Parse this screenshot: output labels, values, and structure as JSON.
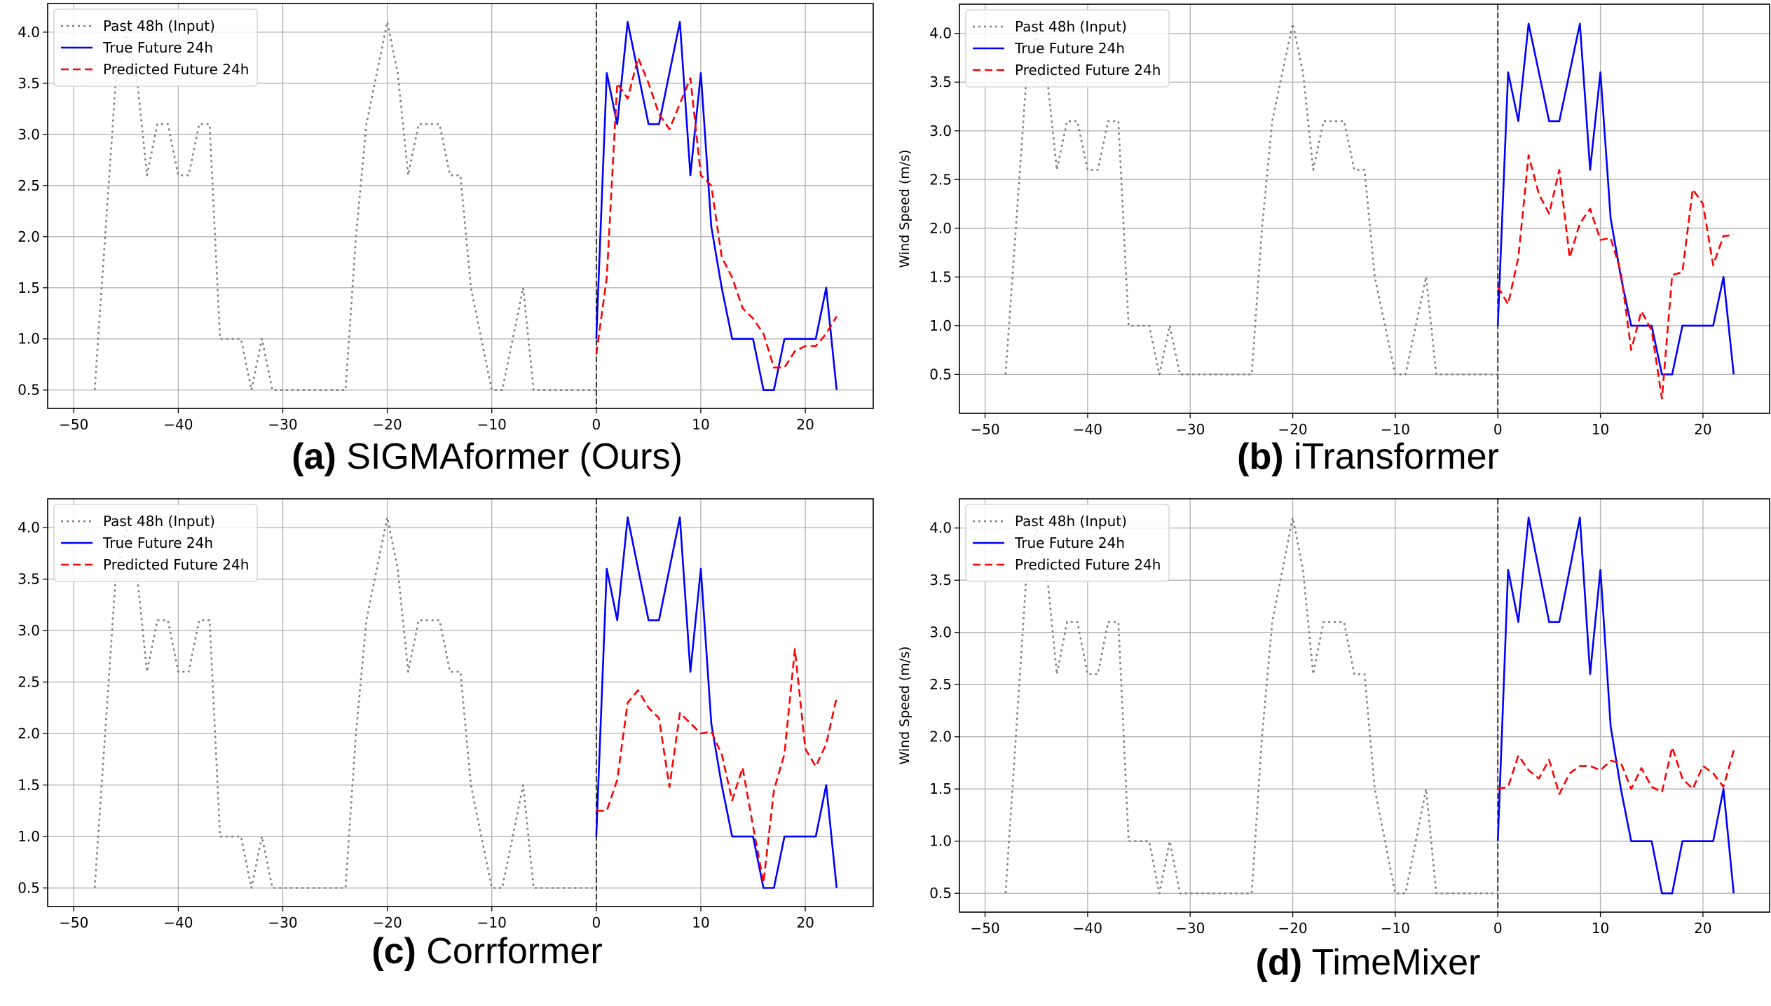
{
  "chart_data": [
    {
      "type": "line",
      "caption_letter": "(a)",
      "caption_name": "SIGMAformer (Ours)",
      "ylabel": "Wind Speed (m/s)",
      "xticks": [
        -50,
        -40,
        -30,
        -20,
        -10,
        0,
        10,
        20
      ],
      "yticks": [
        0.5,
        1.0,
        1.5,
        2.0,
        2.5,
        3.0,
        3.5,
        4.0
      ],
      "xlim": [
        -52.5,
        26.5
      ],
      "ylim": [
        0.32,
        4.28
      ],
      "grid": true,
      "legend": "top-left",
      "vline_x": 0,
      "series": [
        {
          "name": "Past 48h (Input)",
          "color": "#808080",
          "style": "dotted",
          "x": [
            -48,
            -47,
            -46,
            -45,
            -44,
            -43,
            -42,
            -41,
            -40,
            -39,
            -38,
            -37,
            -36,
            -35,
            -34,
            -33,
            -32,
            -31,
            -30,
            -29,
            -28,
            -27,
            -26,
            -25,
            -24,
            -23,
            -22,
            -21,
            -20,
            -19,
            -18,
            -17,
            -16,
            -15,
            -14,
            -13,
            -12,
            -11,
            -10,
            -9,
            -8,
            -7,
            -6,
            -5,
            -4,
            -3,
            -2,
            -1,
            0
          ],
          "y": [
            0.5,
            2.0,
            3.5,
            4.0,
            3.6,
            2.6,
            3.1,
            3.1,
            2.6,
            2.6,
            3.1,
            3.1,
            1.0,
            1.0,
            1.0,
            0.5,
            1.0,
            0.5,
            0.5,
            0.5,
            0.5,
            0.5,
            0.5,
            0.5,
            0.5,
            2.0,
            3.1,
            3.6,
            4.1,
            3.6,
            2.6,
            3.1,
            3.1,
            3.1,
            2.6,
            2.6,
            1.5,
            1.0,
            0.5,
            0.5,
            1.0,
            1.5,
            0.5,
            0.5,
            0.5,
            0.5,
            0.5,
            0.5,
            0.5
          ]
        },
        {
          "name": "True Future 24h",
          "color": "#0000ff",
          "style": "solid",
          "x": [
            0,
            1,
            2,
            3,
            4,
            5,
            6,
            7,
            8,
            9,
            10,
            11,
            12,
            13,
            14,
            15,
            16,
            17,
            18,
            19,
            20,
            21,
            22,
            23
          ],
          "y": [
            1.0,
            3.6,
            3.1,
            4.1,
            3.6,
            3.1,
            3.1,
            3.6,
            4.1,
            2.6,
            3.6,
            2.1,
            1.5,
            1.0,
            1.0,
            1.0,
            0.5,
            0.5,
            1.0,
            1.0,
            1.0,
            1.0,
            1.5,
            0.5
          ]
        },
        {
          "name": "Predicted Future 24h",
          "color": "#ff0000",
          "style": "dashed",
          "x": [
            0,
            1,
            2,
            3,
            4,
            5,
            6,
            7,
            8,
            9,
            10,
            11,
            12,
            13,
            14,
            15,
            16,
            17,
            18,
            19,
            20,
            21,
            22,
            23
          ],
          "y": [
            0.85,
            1.6,
            3.5,
            3.35,
            3.75,
            3.5,
            3.2,
            3.05,
            3.3,
            3.55,
            2.6,
            2.5,
            1.8,
            1.6,
            1.3,
            1.2,
            1.05,
            0.72,
            0.72,
            0.88,
            0.93,
            0.93,
            1.05,
            1.22
          ]
        }
      ]
    },
    {
      "type": "line",
      "caption_letter": "(b)",
      "caption_name": "iTransformer",
      "ylabel": "Wind Speed (m/s)",
      "xticks": [
        -50,
        -40,
        -30,
        -20,
        -10,
        0,
        10,
        20
      ],
      "yticks": [
        0.5,
        1.0,
        1.5,
        2.0,
        2.5,
        3.0,
        3.5,
        4.0
      ],
      "xlim": [
        -52.5,
        26.5
      ],
      "ylim": [
        0.1,
        4.3
      ],
      "grid": true,
      "legend": "top-left",
      "vline_x": 0,
      "series": [
        {
          "name": "Past 48h (Input)",
          "color": "#808080",
          "style": "dotted",
          "x": [
            -48,
            -47,
            -46,
            -45,
            -44,
            -43,
            -42,
            -41,
            -40,
            -39,
            -38,
            -37,
            -36,
            -35,
            -34,
            -33,
            -32,
            -31,
            -30,
            -29,
            -28,
            -27,
            -26,
            -25,
            -24,
            -23,
            -22,
            -21,
            -20,
            -19,
            -18,
            -17,
            -16,
            -15,
            -14,
            -13,
            -12,
            -11,
            -10,
            -9,
            -8,
            -7,
            -6,
            -5,
            -4,
            -3,
            -2,
            -1,
            0
          ],
          "y": [
            0.5,
            2.0,
            3.5,
            4.0,
            3.6,
            2.6,
            3.1,
            3.1,
            2.6,
            2.6,
            3.1,
            3.1,
            1.0,
            1.0,
            1.0,
            0.5,
            1.0,
            0.5,
            0.5,
            0.5,
            0.5,
            0.5,
            0.5,
            0.5,
            0.5,
            2.0,
            3.1,
            3.6,
            4.1,
            3.6,
            2.6,
            3.1,
            3.1,
            3.1,
            2.6,
            2.6,
            1.5,
            1.0,
            0.5,
            0.5,
            1.0,
            1.5,
            0.5,
            0.5,
            0.5,
            0.5,
            0.5,
            0.5,
            0.5
          ]
        },
        {
          "name": "True Future 24h",
          "color": "#0000ff",
          "style": "solid",
          "x": [
            0,
            1,
            2,
            3,
            4,
            5,
            6,
            7,
            8,
            9,
            10,
            11,
            12,
            13,
            14,
            15,
            16,
            17,
            18,
            19,
            20,
            21,
            22,
            23
          ],
          "y": [
            1.0,
            3.6,
            3.1,
            4.1,
            3.6,
            3.1,
            3.1,
            3.6,
            4.1,
            2.6,
            3.6,
            2.1,
            1.5,
            1.0,
            1.0,
            1.0,
            0.5,
            0.5,
            1.0,
            1.0,
            1.0,
            1.0,
            1.5,
            0.5
          ]
        },
        {
          "name": "Predicted Future 24h",
          "color": "#ff0000",
          "style": "dashed",
          "x": [
            0,
            1,
            2,
            3,
            4,
            5,
            6,
            7,
            8,
            9,
            10,
            11,
            12,
            13,
            14,
            15,
            16,
            17,
            18,
            19,
            20,
            21,
            22,
            23
          ],
          "y": [
            1.4,
            1.22,
            1.7,
            2.75,
            2.35,
            2.15,
            2.6,
            1.7,
            2.05,
            2.2,
            1.88,
            1.9,
            1.55,
            0.75,
            1.15,
            0.95,
            0.25,
            1.52,
            1.55,
            2.4,
            2.25,
            1.62,
            1.92,
            1.93
          ]
        }
      ]
    },
    {
      "type": "line",
      "caption_letter": "(c)",
      "caption_name": "Corrformer",
      "ylabel": "Wind Speed (m/s)",
      "xticks": [
        -50,
        -40,
        -30,
        -20,
        -10,
        0,
        10,
        20
      ],
      "yticks": [
        0.5,
        1.0,
        1.5,
        2.0,
        2.5,
        3.0,
        3.5,
        4.0
      ],
      "xlim": [
        -52.5,
        26.5
      ],
      "ylim": [
        0.32,
        4.28
      ],
      "grid": true,
      "legend": "top-left",
      "vline_x": 0,
      "series": [
        {
          "name": "Past 48h (Input)",
          "color": "#808080",
          "style": "dotted",
          "x": [
            -48,
            -47,
            -46,
            -45,
            -44,
            -43,
            -42,
            -41,
            -40,
            -39,
            -38,
            -37,
            -36,
            -35,
            -34,
            -33,
            -32,
            -31,
            -30,
            -29,
            -28,
            -27,
            -26,
            -25,
            -24,
            -23,
            -22,
            -21,
            -20,
            -19,
            -18,
            -17,
            -16,
            -15,
            -14,
            -13,
            -12,
            -11,
            -10,
            -9,
            -8,
            -7,
            -6,
            -5,
            -4,
            -3,
            -2,
            -1,
            0
          ],
          "y": [
            0.5,
            2.0,
            3.5,
            4.0,
            3.6,
            2.6,
            3.1,
            3.1,
            2.6,
            2.6,
            3.1,
            3.1,
            1.0,
            1.0,
            1.0,
            0.5,
            1.0,
            0.5,
            0.5,
            0.5,
            0.5,
            0.5,
            0.5,
            0.5,
            0.5,
            2.0,
            3.1,
            3.6,
            4.1,
            3.6,
            2.6,
            3.1,
            3.1,
            3.1,
            2.6,
            2.6,
            1.5,
            1.0,
            0.5,
            0.5,
            1.0,
            1.5,
            0.5,
            0.5,
            0.5,
            0.5,
            0.5,
            0.5,
            0.5
          ]
        },
        {
          "name": "True Future 24h",
          "color": "#0000ff",
          "style": "solid",
          "x": [
            0,
            1,
            2,
            3,
            4,
            5,
            6,
            7,
            8,
            9,
            10,
            11,
            12,
            13,
            14,
            15,
            16,
            17,
            18,
            19,
            20,
            21,
            22,
            23
          ],
          "y": [
            1.0,
            3.6,
            3.1,
            4.1,
            3.6,
            3.1,
            3.1,
            3.6,
            4.1,
            2.6,
            3.6,
            2.1,
            1.5,
            1.0,
            1.0,
            1.0,
            0.5,
            0.5,
            1.0,
            1.0,
            1.0,
            1.0,
            1.5,
            0.5
          ]
        },
        {
          "name": "Predicted Future 24h",
          "color": "#ff0000",
          "style": "dashed",
          "x": [
            0,
            1,
            2,
            3,
            4,
            5,
            6,
            7,
            8,
            9,
            10,
            11,
            12,
            13,
            14,
            15,
            16,
            17,
            18,
            19,
            20,
            21,
            22,
            23
          ],
          "y": [
            1.25,
            1.25,
            1.55,
            2.3,
            2.42,
            2.25,
            2.15,
            1.48,
            2.2,
            2.1,
            2.0,
            2.02,
            1.8,
            1.35,
            1.67,
            1.1,
            0.55,
            1.45,
            1.8,
            2.82,
            1.85,
            1.68,
            1.9,
            2.35
          ]
        }
      ]
    },
    {
      "type": "line",
      "caption_letter": "(d)",
      "caption_name": "TimeMixer",
      "ylabel": "Wind Speed (m/s)",
      "xticks": [
        -50,
        -40,
        -30,
        -20,
        -10,
        0,
        10,
        20
      ],
      "yticks": [
        0.5,
        1.0,
        1.5,
        2.0,
        2.5,
        3.0,
        3.5,
        4.0
      ],
      "xlim": [
        -52.5,
        26.5
      ],
      "ylim": [
        0.32,
        4.28
      ],
      "grid": true,
      "legend": "top-left",
      "vline_x": 0,
      "series": [
        {
          "name": "Past 48h (Input)",
          "color": "#808080",
          "style": "dotted",
          "x": [
            -48,
            -47,
            -46,
            -45,
            -44,
            -43,
            -42,
            -41,
            -40,
            -39,
            -38,
            -37,
            -36,
            -35,
            -34,
            -33,
            -32,
            -31,
            -30,
            -29,
            -28,
            -27,
            -26,
            -25,
            -24,
            -23,
            -22,
            -21,
            -20,
            -19,
            -18,
            -17,
            -16,
            -15,
            -14,
            -13,
            -12,
            -11,
            -10,
            -9,
            -8,
            -7,
            -6,
            -5,
            -4,
            -3,
            -2,
            -1,
            0
          ],
          "y": [
            0.5,
            2.0,
            3.5,
            4.0,
            3.6,
            2.6,
            3.1,
            3.1,
            2.6,
            2.6,
            3.1,
            3.1,
            1.0,
            1.0,
            1.0,
            0.5,
            1.0,
            0.5,
            0.5,
            0.5,
            0.5,
            0.5,
            0.5,
            0.5,
            0.5,
            2.0,
            3.1,
            3.6,
            4.1,
            3.6,
            2.6,
            3.1,
            3.1,
            3.1,
            2.6,
            2.6,
            1.5,
            1.0,
            0.5,
            0.5,
            1.0,
            1.5,
            0.5,
            0.5,
            0.5,
            0.5,
            0.5,
            0.5,
            0.5
          ]
        },
        {
          "name": "True Future 24h",
          "color": "#0000ff",
          "style": "solid",
          "x": [
            0,
            1,
            2,
            3,
            4,
            5,
            6,
            7,
            8,
            9,
            10,
            11,
            12,
            13,
            14,
            15,
            16,
            17,
            18,
            19,
            20,
            21,
            22,
            23
          ],
          "y": [
            1.0,
            3.6,
            3.1,
            4.1,
            3.6,
            3.1,
            3.1,
            3.6,
            4.1,
            2.6,
            3.6,
            2.1,
            1.5,
            1.0,
            1.0,
            1.0,
            0.5,
            0.5,
            1.0,
            1.0,
            1.0,
            1.0,
            1.5,
            0.5
          ]
        },
        {
          "name": "Predicted Future 24h",
          "color": "#ff0000",
          "style": "dashed",
          "x": [
            0,
            1,
            2,
            3,
            4,
            5,
            6,
            7,
            8,
            9,
            10,
            11,
            12,
            13,
            14,
            15,
            16,
            17,
            18,
            19,
            20,
            21,
            22,
            23
          ],
          "y": [
            1.5,
            1.52,
            1.82,
            1.68,
            1.6,
            1.78,
            1.45,
            1.65,
            1.72,
            1.72,
            1.68,
            1.77,
            1.75,
            1.5,
            1.7,
            1.52,
            1.47,
            1.9,
            1.6,
            1.5,
            1.72,
            1.65,
            1.52,
            1.87
          ]
        }
      ]
    }
  ]
}
